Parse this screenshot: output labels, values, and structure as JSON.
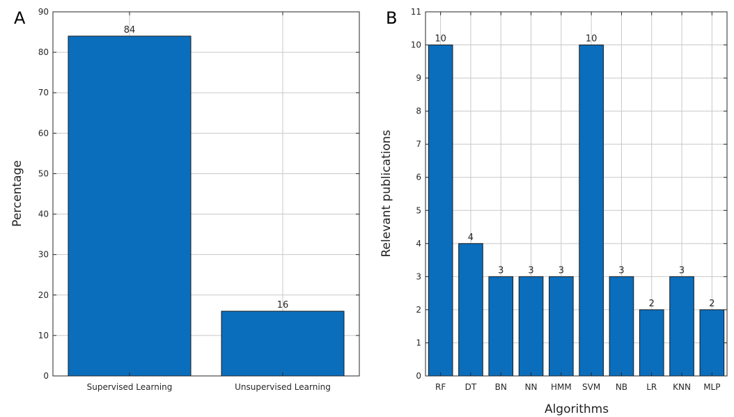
{
  "panels": {
    "a": {
      "letter": "A"
    },
    "b": {
      "letter": "B"
    }
  },
  "chart_data": [
    {
      "type": "bar",
      "panel": "A",
      "categories": [
        "Supervised Learning",
        "Unsupervised Learning"
      ],
      "values": [
        84,
        16
      ],
      "data_labels": [
        "84",
        "16"
      ],
      "title": "",
      "xlabel": "",
      "ylabel": "Percentage",
      "ylim": [
        0,
        90
      ],
      "yticks": [
        0,
        10,
        20,
        30,
        40,
        50,
        60,
        70,
        80,
        90
      ],
      "grid": true,
      "bar_color": "#0a6ebd"
    },
    {
      "type": "bar",
      "panel": "B",
      "categories": [
        "RF",
        "DT",
        "BN",
        "NN",
        "HMM",
        "SVM",
        "NB",
        "LR",
        "KNN",
        "MLP"
      ],
      "values": [
        10,
        4,
        3,
        3,
        3,
        10,
        3,
        2,
        3,
        2
      ],
      "data_labels": [
        "10",
        "4",
        "3",
        "3",
        "3",
        "10",
        "3",
        "2",
        "3",
        "2"
      ],
      "title": "",
      "xlabel": "Algorithms",
      "ylabel": "Relevant publications",
      "ylim": [
        0,
        11
      ],
      "yticks": [
        0,
        1,
        2,
        3,
        4,
        5,
        6,
        7,
        8,
        9,
        10,
        11
      ],
      "grid": true,
      "bar_color": "#0a6ebd"
    }
  ]
}
